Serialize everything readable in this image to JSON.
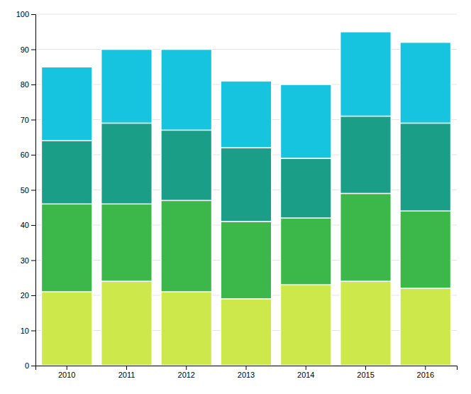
{
  "chart_data": {
    "type": "bar",
    "stacked": true,
    "grid": true,
    "categories": [
      "2010",
      "2011",
      "2012",
      "2013",
      "2014",
      "2015",
      "2016"
    ],
    "series": [
      {
        "color": "#cde84a",
        "values": [
          21,
          24,
          21,
          19,
          23,
          24,
          22
        ]
      },
      {
        "color": "#3cb84a",
        "values": [
          25,
          22,
          26,
          22,
          19,
          25,
          22
        ]
      },
      {
        "color": "#1a9e88",
        "values": [
          18,
          23,
          20,
          21,
          17,
          22,
          25
        ]
      },
      {
        "color": "#17c4e0",
        "values": [
          21,
          21,
          23,
          19,
          21,
          24,
          23
        ]
      }
    ],
    "ylim": [
      0,
      100
    ],
    "yticks": [
      0,
      10,
      20,
      30,
      40,
      50,
      60,
      70,
      80,
      90,
      100
    ]
  }
}
